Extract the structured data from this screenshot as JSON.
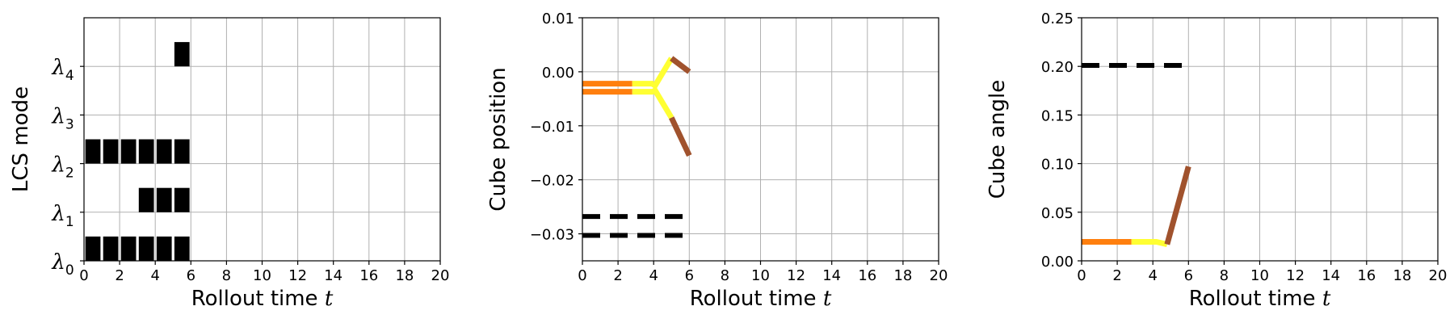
{
  "chart_data": [
    {
      "type": "heatmap",
      "xlabel": "Rollout time",
      "xlabel_var": "t",
      "ylabel": "LCS mode",
      "xlim": [
        0,
        20
      ],
      "xticks": [
        "0",
        "2",
        "4",
        "6",
        "8",
        "10",
        "12",
        "14",
        "16",
        "18",
        "20"
      ],
      "ylim": [
        0,
        5
      ],
      "yticks": [
        {
          "value": 0,
          "base": "λ",
          "sub": "0"
        },
        {
          "value": 1,
          "base": "λ",
          "sub": "1"
        },
        {
          "value": 2,
          "base": "λ",
          "sub": "2"
        },
        {
          "value": 3,
          "base": "λ",
          "sub": "3"
        },
        {
          "value": 4,
          "base": "λ",
          "sub": "4"
        }
      ],
      "grid": true,
      "fill_color": "#000000",
      "cell_width": 0.85,
      "cell_height": 0.5,
      "active_cells": [
        {
          "mode": 0,
          "t": [
            0,
            1,
            2,
            3,
            4,
            5
          ]
        },
        {
          "mode": 1,
          "t": [
            3,
            4,
            5
          ]
        },
        {
          "mode": 2,
          "t": [
            0,
            1,
            2,
            3,
            4,
            5
          ]
        },
        {
          "mode": 4,
          "t": [
            5
          ]
        }
      ]
    },
    {
      "type": "line",
      "xlabel": "Rollout time",
      "xlabel_var": "t",
      "ylabel": "Cube position",
      "xlim": [
        0,
        20
      ],
      "xticks": [
        "0",
        "2",
        "4",
        "6",
        "8",
        "10",
        "12",
        "14",
        "16",
        "18",
        "20"
      ],
      "ylim": [
        -0.035,
        0.01
      ],
      "yticks": [
        {
          "value": 0.01,
          "label": "0.01"
        },
        {
          "value": 0.0,
          "label": "0.00"
        },
        {
          "value": -0.01,
          "label": "−0.01"
        },
        {
          "value": -0.02,
          "label": "−0.02"
        },
        {
          "value": -0.03,
          "label": "−0.03"
        }
      ],
      "grid": true,
      "series": [
        {
          "style": "solid",
          "color": "#ff7f0e",
          "x": [
            0,
            2.8
          ],
          "y": [
            -0.0022,
            -0.0022
          ]
        },
        {
          "style": "solid",
          "color": "#ff7f0e",
          "x": [
            0,
            2.8
          ],
          "y": [
            -0.0037,
            -0.0037
          ]
        },
        {
          "style": "solid",
          "color": "#ffff33",
          "x": [
            2.8,
            4.0
          ],
          "y": [
            -0.0022,
            -0.0022
          ]
        },
        {
          "style": "solid",
          "color": "#ffff33",
          "x": [
            2.8,
            4.0
          ],
          "y": [
            -0.0037,
            -0.0037
          ]
        },
        {
          "style": "solid",
          "color": "#ffff33",
          "x": [
            4.0,
            5.0
          ],
          "y": [
            -0.003,
            0.0025
          ]
        },
        {
          "style": "solid",
          "color": "#ffff33",
          "x": [
            4.0,
            5.0
          ],
          "y": [
            -0.003,
            -0.0085
          ]
        },
        {
          "style": "solid",
          "color": "#a0522d",
          "x": [
            5.0,
            6.0
          ],
          "y": [
            0.0025,
            0.0
          ]
        },
        {
          "style": "solid",
          "color": "#a0522d",
          "x": [
            5.0,
            6.0
          ],
          "y": [
            -0.0085,
            -0.0155
          ]
        },
        {
          "style": "dashed",
          "color": "#000000",
          "x": [
            0,
            6
          ],
          "y": [
            -0.0268,
            -0.0268
          ]
        },
        {
          "style": "dashed",
          "color": "#000000",
          "x": [
            0,
            6
          ],
          "y": [
            -0.0303,
            -0.0303
          ]
        }
      ]
    },
    {
      "type": "line",
      "xlabel": "Rollout time",
      "xlabel_var": "t",
      "ylabel": "Cube angle",
      "xlim": [
        0,
        20
      ],
      "xticks": [
        "0",
        "2",
        "4",
        "6",
        "8",
        "10",
        "12",
        "14",
        "16",
        "18",
        "20"
      ],
      "ylim": [
        0,
        0.25
      ],
      "yticks": [
        {
          "value": 0.0,
          "label": "0.00"
        },
        {
          "value": 0.05,
          "label": "0.05"
        },
        {
          "value": 0.1,
          "label": "0.10"
        },
        {
          "value": 0.15,
          "label": "0.15"
        },
        {
          "value": 0.2,
          "label": "0.20"
        },
        {
          "value": 0.25,
          "label": "0.25"
        }
      ],
      "grid": true,
      "series": [
        {
          "style": "dashed",
          "color": "#000000",
          "x": [
            0,
            6
          ],
          "y": [
            0.201,
            0.201
          ]
        },
        {
          "style": "solid",
          "color": "#ff7f0e",
          "x": [
            0,
            2.8
          ],
          "y": [
            0.0195,
            0.0195
          ]
        },
        {
          "style": "solid",
          "color": "#ffff33",
          "x": [
            2.8,
            4.2,
            4.8
          ],
          "y": [
            0.0195,
            0.0195,
            0.017
          ]
        },
        {
          "style": "solid",
          "color": "#a0522d",
          "x": [
            4.8,
            6.0
          ],
          "y": [
            0.017,
            0.097
          ]
        }
      ]
    }
  ]
}
